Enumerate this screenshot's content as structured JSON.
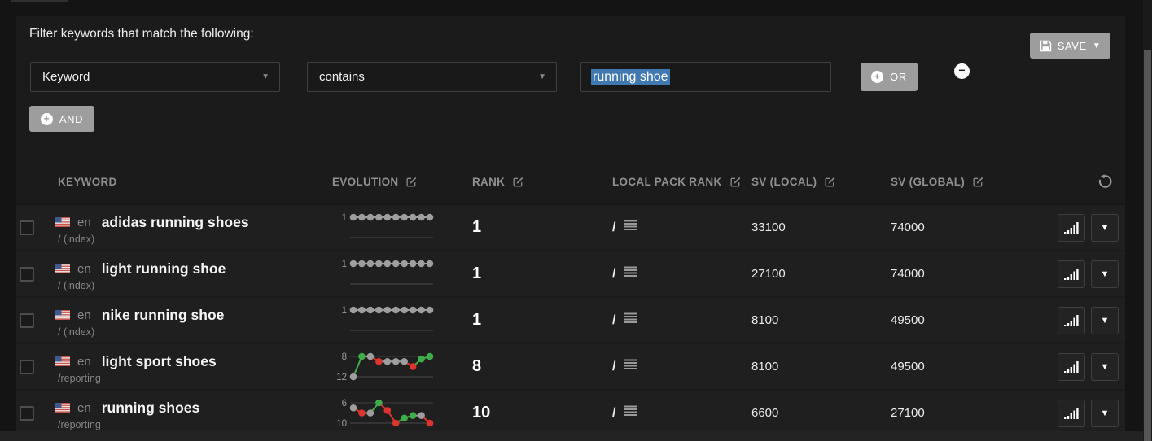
{
  "filter": {
    "title": "Filter keywords that match the following:",
    "field_select": {
      "value": "Keyword"
    },
    "operator_select": {
      "value": "contains"
    },
    "value_input": {
      "value": "running shoe",
      "text_selected": true
    },
    "or_label": "OR",
    "and_label": "AND",
    "save_label": "SAVE"
  },
  "table": {
    "headers": [
      {
        "label": "KEYWORD",
        "editable": false
      },
      {
        "label": "EVOLUTION",
        "editable": true
      },
      {
        "label": "RANK",
        "editable": true
      },
      {
        "label": "LOCAL PACK RANK",
        "editable": true
      },
      {
        "label": "SV (LOCAL)",
        "editable": true
      },
      {
        "label": "SV (GLOBAL)",
        "editable": true
      }
    ],
    "rows": [
      {
        "lang": "en",
        "flag": "us-flag",
        "keyword": "adidas running shoes",
        "url": "/ (index)",
        "rank": "1",
        "local_pack_rank": "/",
        "sv_local": "33100",
        "sv_global": "74000",
        "evolution": {
          "y_labels": [
            "1"
          ],
          "ymin": 1,
          "ymax": 2,
          "values": [
            1,
            1,
            1,
            1,
            1,
            1,
            1,
            1,
            1,
            1
          ],
          "colors": [
            "grey",
            "grey",
            "grey",
            "grey",
            "grey",
            "grey",
            "grey",
            "grey",
            "grey",
            "grey"
          ]
        }
      },
      {
        "lang": "en",
        "flag": "us-flag",
        "keyword": "light running shoe",
        "url": "/ (index)",
        "rank": "1",
        "local_pack_rank": "/",
        "sv_local": "27100",
        "sv_global": "74000",
        "evolution": {
          "y_labels": [
            "1"
          ],
          "ymin": 1,
          "ymax": 2,
          "values": [
            1,
            1,
            1,
            1,
            1,
            1,
            1,
            1,
            1,
            1
          ],
          "colors": [
            "grey",
            "grey",
            "grey",
            "grey",
            "grey",
            "grey",
            "grey",
            "grey",
            "grey",
            "grey"
          ]
        }
      },
      {
        "lang": "en",
        "flag": "us-flag",
        "keyword": "nike running shoe",
        "url": "/ (index)",
        "rank": "1",
        "local_pack_rank": "/",
        "sv_local": "8100",
        "sv_global": "49500",
        "evolution": {
          "y_labels": [
            "1"
          ],
          "ymin": 1,
          "ymax": 2,
          "values": [
            1,
            1,
            1,
            1,
            1,
            1,
            1,
            1,
            1,
            1
          ],
          "colors": [
            "grey",
            "grey",
            "grey",
            "grey",
            "grey",
            "grey",
            "grey",
            "grey",
            "grey",
            "grey"
          ]
        }
      },
      {
        "lang": "en",
        "flag": "us-flag",
        "keyword": "light sport shoes",
        "url": "/reporting",
        "rank": "8",
        "local_pack_rank": "/",
        "sv_local": "8100",
        "sv_global": "49500",
        "evolution": {
          "y_labels": [
            "8",
            "12"
          ],
          "ymin": 8,
          "ymax": 12,
          "values": [
            12,
            8,
            8,
            9,
            9,
            9,
            9,
            10,
            8.5,
            8
          ],
          "colors": [
            "grey",
            "green",
            "grey",
            "red",
            "grey",
            "grey",
            "grey",
            "red",
            "green",
            "green"
          ]
        }
      },
      {
        "lang": "en",
        "flag": "us-flag",
        "keyword": "running shoes",
        "url": "/reporting",
        "rank": "10",
        "local_pack_rank": "/",
        "sv_local": "6600",
        "sv_global": "27100",
        "evolution": {
          "y_labels": [
            "6",
            "10"
          ],
          "ymin": 6,
          "ymax": 10,
          "values": [
            7,
            8,
            8,
            6,
            7.5,
            10,
            9,
            8.5,
            8.5,
            10
          ],
          "colors": [
            "grey",
            "red",
            "grey",
            "green",
            "red",
            "red",
            "green",
            "green",
            "grey",
            "red"
          ]
        }
      }
    ]
  },
  "colors": {
    "grey": "#9e9e9e",
    "green": "#3fae4a",
    "red": "#de342f",
    "selection_blue": "#4078b0",
    "button_grey": "#9d9d9d"
  }
}
